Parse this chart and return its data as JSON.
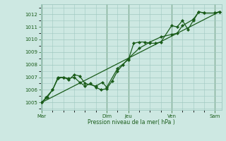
{
  "background_color": "#cde8e2",
  "grid_color": "#a0c8c0",
  "line_color": "#1a5c1a",
  "marker_color": "#1a5c1a",
  "ylabel_values": [
    1005,
    1006,
    1007,
    1008,
    1009,
    1010,
    1011,
    1012
  ],
  "ylim": [
    1004.4,
    1012.8
  ],
  "xlabel": "Pression niveau de la mer( hPa )",
  "day_labels": [
    "Mar",
    "",
    "Dim",
    "Jeu",
    "",
    "Ven",
    "",
    "Sam"
  ],
  "day_positions": [
    0,
    1.5,
    3.0,
    4.0,
    5.0,
    6.0,
    7.0,
    8.0
  ],
  "major_vline_positions": [
    0,
    3.0,
    4.0,
    6.0,
    8.0
  ],
  "xlim": [
    -0.05,
    8.3
  ],
  "series1_x": [
    0,
    0.2,
    0.5,
    0.75,
    1.0,
    1.25,
    1.5,
    1.75,
    2.0,
    2.5,
    2.8,
    3.0,
    3.5,
    4.0,
    4.25,
    4.5,
    4.75,
    5.0,
    5.25,
    5.5,
    6.0,
    6.25,
    6.5,
    6.75,
    7.0,
    7.25,
    7.5,
    8.0,
    8.2
  ],
  "series1_y": [
    1005.0,
    1005.4,
    1006.0,
    1007.0,
    1007.0,
    1006.8,
    1007.2,
    1007.1,
    1006.5,
    1006.3,
    1006.6,
    1006.2,
    1007.7,
    1008.4,
    1009.7,
    1009.8,
    1009.8,
    1009.7,
    1009.7,
    1009.8,
    1011.1,
    1011.0,
    1011.5,
    1010.8,
    1011.5,
    1012.2,
    1012.1,
    1012.1,
    1012.2
  ],
  "series2_x": [
    0,
    0.25,
    0.5,
    0.75,
    1.0,
    1.25,
    1.5,
    1.75,
    2.0,
    2.25,
    2.5,
    2.75,
    3.0,
    3.25,
    3.5,
    3.75,
    4.0,
    4.5,
    5.0,
    5.5,
    6.0,
    6.25,
    6.5,
    7.0,
    7.25,
    7.5,
    8.0,
    8.2
  ],
  "series2_y": [
    1005.0,
    1005.4,
    1006.0,
    1006.9,
    1007.0,
    1006.9,
    1007.0,
    1006.6,
    1006.3,
    1006.5,
    1006.2,
    1006.0,
    1006.1,
    1006.7,
    1007.5,
    1008.0,
    1008.5,
    1009.3,
    1009.8,
    1010.2,
    1010.4,
    1010.5,
    1011.1,
    1011.6,
    1012.2,
    1012.1,
    1012.1,
    1012.2
  ],
  "trend_x": [
    0,
    8.2
  ],
  "trend_y": [
    1005.0,
    1012.2
  ],
  "figsize": [
    3.2,
    2.0
  ],
  "dpi": 100
}
